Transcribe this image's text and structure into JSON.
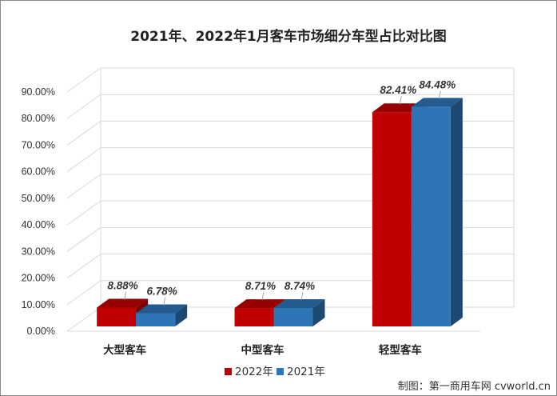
{
  "chart_data": {
    "type": "bar",
    "title": "2021年、2022年1月客车市场细分车型占比对比图",
    "categories": [
      "大型客车",
      "中型客车",
      "轻型客车"
    ],
    "series": [
      {
        "name": "2022年",
        "values": [
          8.88,
          8.71,
          82.41
        ],
        "labels": [
          "8.88%",
          "8.71%",
          "82.41%"
        ],
        "color": "#c00000"
      },
      {
        "name": "2021年",
        "values": [
          6.78,
          8.74,
          84.48
        ],
        "labels": [
          "6.78%",
          "8.74%",
          "84.48%"
        ],
        "color": "#2e75b6"
      }
    ],
    "ylim": [
      0,
      90
    ],
    "yticks": [
      "0.00%",
      "10.00%",
      "20.00%",
      "30.00%",
      "40.00%",
      "50.00%",
      "60.00%",
      "70.00%",
      "80.00%",
      "90.00%"
    ],
    "grid": true,
    "legend_position": "bottom",
    "style": "3d-clustered-column"
  },
  "credit": "制图：第一商用车网 cvworld.cn"
}
